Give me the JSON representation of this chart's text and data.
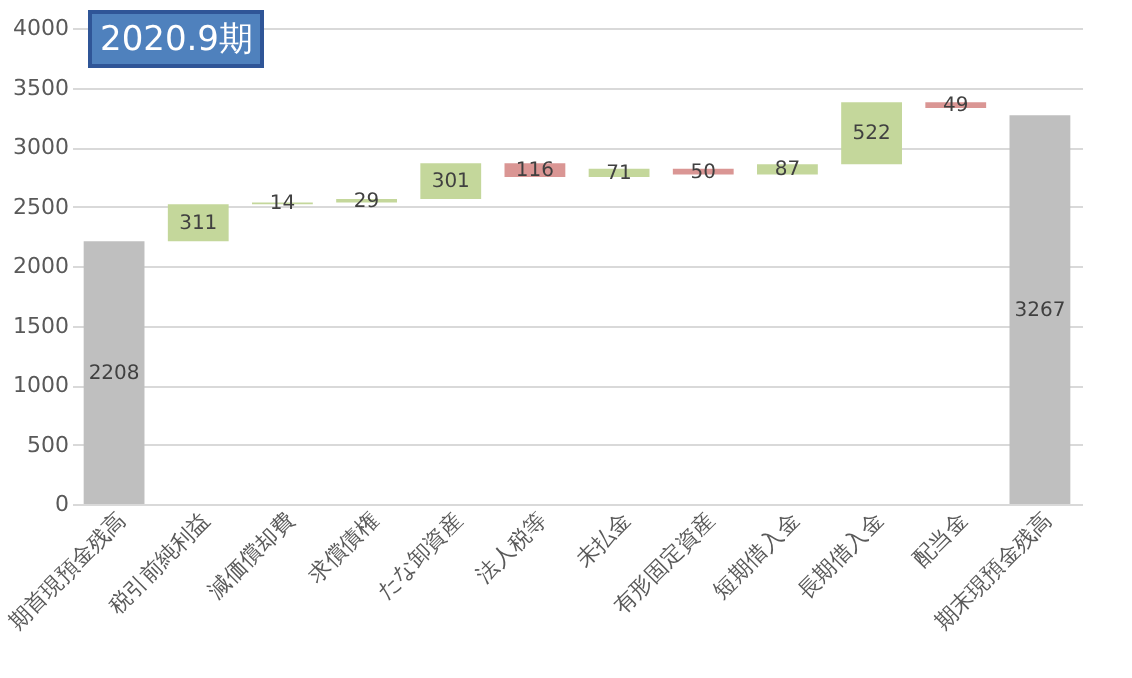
{
  "chart_data": {
    "type": "bar",
    "title": "2020.9期",
    "categories": [
      "期首現預金残高",
      "税引前純利益",
      "減価償却費",
      "求償債権",
      "たな卸資産",
      "法人税等",
      "未払金",
      "有形固定資産",
      "短期借入金",
      "長期借入金",
      "配当金",
      "期末現預金残高"
    ],
    "values": [
      2208,
      311,
      14,
      29,
      301,
      -116,
      71,
      -50,
      87,
      522,
      -49,
      3267
    ],
    "base": [
      0,
      2208,
      2519,
      2533,
      2562,
      2863,
      2747,
      2818,
      2768,
      2855,
      3377,
      0
    ],
    "colors": [
      "#bfbfbf",
      "#c4d79b",
      "#c4d79b",
      "#c4d79b",
      "#c4d79b",
      "#da9694",
      "#c4d79b",
      "#da9694",
      "#c4d79b",
      "#c4d79b",
      "#da9694",
      "#bfbfbf"
    ],
    "value_labels": [
      "2208",
      "311",
      "14",
      "29",
      "301",
      "116",
      "71",
      "50",
      "87",
      "522",
      "49",
      "3267"
    ],
    "ylim": [
      0,
      4000
    ],
    "yticks": [
      0,
      500,
      1000,
      1500,
      2000,
      2500,
      3000,
      3500,
      4000
    ],
    "grid": "y"
  }
}
